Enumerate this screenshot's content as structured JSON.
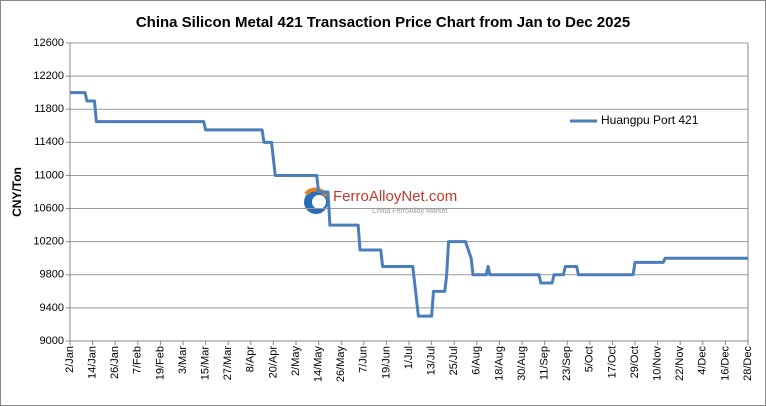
{
  "chart_data": {
    "type": "line",
    "title": "China Silicon Metal 421  Transaction Price Chart from Jan to Dec 2025",
    "y_label": "CNY/Ton",
    "watermark": "FerroAlloyNet.com",
    "watermark_subtitle": "China FerroAlloy Market",
    "x": [
      "2/Jan",
      "10/Jan",
      "11/Jan",
      "15/Jan",
      "16/Jan",
      "14/Mar",
      "15/Mar",
      "14/Apr",
      "15/Apr",
      "19/Apr",
      "20/Apr",
      "21/Apr",
      "13/May",
      "14/May",
      "19/May",
      "20/May",
      "4/Jun",
      "5/Jun",
      "16/Jun",
      "17/Jun",
      "3/Jul",
      "5/Jul",
      "6/Jul",
      "13/Jul",
      "14/Jul",
      "20/Jul",
      "21/Jul",
      "22/Jul",
      "31/Jul",
      "3/Aug",
      "4/Aug",
      "11/Aug",
      "12/Aug",
      "13/Aug",
      "8/Sep",
      "9/Sep",
      "15/Sep",
      "16/Sep",
      "21/Sep",
      "22/Sep",
      "28/Sep",
      "29/Sep",
      "28/Oct",
      "29/Oct",
      "13/Nov",
      "14/Nov",
      "28/Dec"
    ],
    "series": [
      {
        "name": "Huangpu Port 421",
        "color": "#4a7ebb",
        "values": [
          12000,
          12000,
          11900,
          11900,
          11650,
          11650,
          11550,
          11550,
          11400,
          11400,
          11200,
          11000,
          11000,
          10800,
          10800,
          10400,
          10400,
          10100,
          10100,
          9900,
          9900,
          9500,
          9300,
          9300,
          9600,
          9600,
          9800,
          10200,
          10200,
          10000,
          9800,
          9800,
          9900,
          9800,
          9800,
          9700,
          9700,
          9800,
          9800,
          9900,
          9900,
          9800,
          9800,
          9950,
          9950,
          10000,
          10000
        ]
      }
    ],
    "xlim": [
      "2/Jan",
      "28/Dec"
    ],
    "xticks": [
      "2/Jan",
      "14/Jan",
      "26/Jan",
      "7/Feb",
      "19/Feb",
      "3/Mar",
      "15/Mar",
      "27/Mar",
      "8/Apr",
      "20/Apr",
      "2/May",
      "14/May",
      "26/May",
      "7/Jun",
      "19/Jun",
      "1/Jul",
      "13/Jul",
      "25/Jul",
      "6/Aug",
      "18/Aug",
      "30/Aug",
      "11/Sep",
      "23/Sep",
      "5/Oct",
      "17/Oct",
      "29/Oct",
      "10/Nov",
      "22/Nov",
      "4/Dec",
      "16/Dec",
      "28/Dec"
    ],
    "ylim": [
      9000,
      12600
    ],
    "yticks": [
      9000,
      9400,
      9800,
      10200,
      10600,
      11000,
      11400,
      11800,
      12200,
      12600
    ],
    "grid": true,
    "legend": "upper right"
  }
}
